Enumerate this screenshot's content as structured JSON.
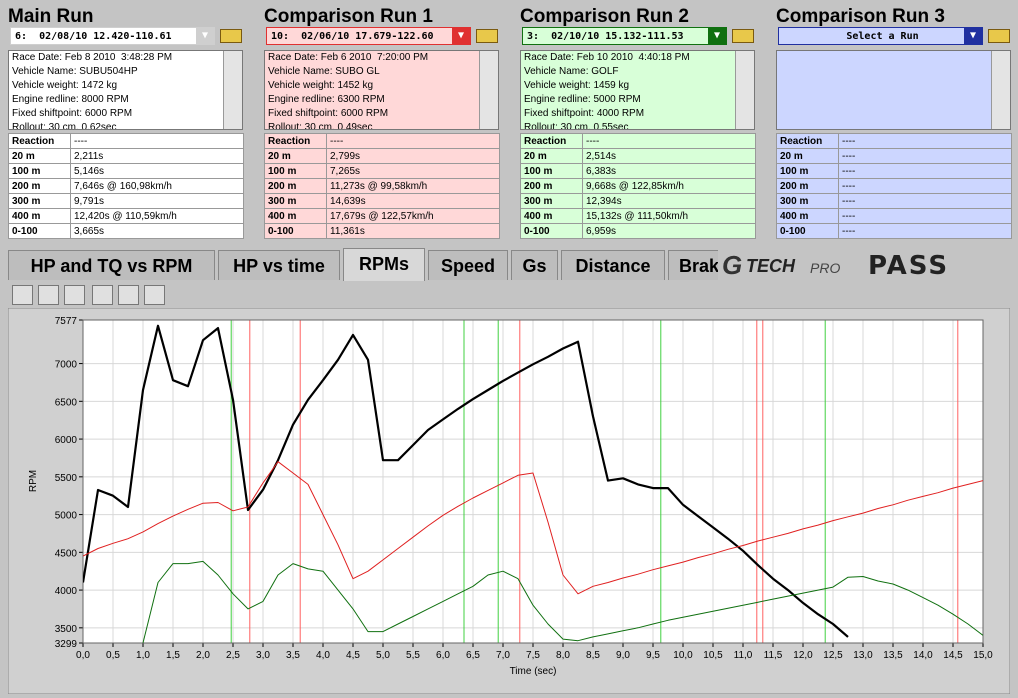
{
  "panels": [
    {
      "title": "Main Run",
      "selection": "6:  02/08/10 12.420-110.61",
      "color": "#ffffff",
      "button": "#cfcfcf",
      "info": [
        "Race Date: Feb 8 2010  3:48:28 PM",
        "Vehicle Name: SUBU504HP",
        "Vehicle weight: 1472 kg",
        "Engine redline: 8000 RPM",
        "Fixed shiftpoint: 6000 RPM",
        "Rollout: 30 cm, 0.62sec"
      ],
      "rows": [
        [
          "Reaction",
          "----"
        ],
        [
          "20 m",
          "2,211s"
        ],
        [
          "100 m",
          "5,146s"
        ],
        [
          "200 m",
          "7,646s @ 160,98km/h"
        ],
        [
          "300 m",
          "9,791s"
        ],
        [
          "400 m",
          "12,420s @ 110,59km/h"
        ],
        [
          "0-100",
          "3,665s"
        ]
      ]
    },
    {
      "title": "Comparison Run 1",
      "selection": "10:  02/06/10 17.679-122.60",
      "color": "#ffd8d8",
      "button": "#e03030",
      "info": [
        "Race Date: Feb 6 2010  7:20:00 PM",
        "Vehicle Name: SUBO GL",
        "Vehicle weight: 1452 kg",
        "Engine redline: 6300 RPM",
        "Fixed shiftpoint: 6000 RPM",
        "Rollout: 30 cm, 0.49sec"
      ],
      "rows": [
        [
          "Reaction",
          "----"
        ],
        [
          "20 m",
          "2,799s"
        ],
        [
          "100 m",
          "7,265s"
        ],
        [
          "200 m",
          "11,273s @ 99,58km/h"
        ],
        [
          "300 m",
          "14,639s"
        ],
        [
          "400 m",
          "17,679s @ 122,57km/h"
        ],
        [
          "0-100",
          "11,361s"
        ]
      ]
    },
    {
      "title": "Comparison Run 2",
      "selection": "3:  02/10/10 15.132-111.53",
      "color": "#d8ffd8",
      "button": "#107010",
      "info": [
        "Race Date: Feb 10 2010  4:40:18 PM",
        "Vehicle Name: GOLF",
        "Vehicle weight: 1459 kg",
        "Engine redline: 5000 RPM",
        "Fixed shiftpoint: 4000 RPM",
        "Rollout: 30 cm, 0.55sec"
      ],
      "rows": [
        [
          "Reaction",
          "----"
        ],
        [
          "20 m",
          "2,514s"
        ],
        [
          "100 m",
          "6,383s"
        ],
        [
          "200 m",
          "9,668s @ 122,85km/h"
        ],
        [
          "300 m",
          "12,394s"
        ],
        [
          "400 m",
          "15,132s @ 111,50km/h"
        ],
        [
          "0-100",
          "6,959s"
        ]
      ]
    },
    {
      "title": "Comparison Run 3",
      "selection": "Select a Run",
      "color": "#ccd6ff",
      "button": "#2030a0",
      "info": [],
      "rows": [
        [
          "Reaction",
          "----"
        ],
        [
          "20 m",
          "----"
        ],
        [
          "100 m",
          "----"
        ],
        [
          "200 m",
          "----"
        ],
        [
          "300 m",
          "----"
        ],
        [
          "400 m",
          "----"
        ],
        [
          "0-100",
          "----"
        ]
      ]
    }
  ],
  "tabs": [
    "HP and TQ vs RPM",
    "HP vs time",
    "RPMs",
    "Speed",
    "Gs",
    "Distance",
    "Brakes"
  ],
  "logo": {
    "mark": "G",
    "brand": "TECH",
    "suffix": "PRO",
    "product": "PASS"
  },
  "chart_data": {
    "type": "line",
    "x_label": "Time (sec)",
    "y_label": "RPM",
    "grid": true,
    "xlim": [
      0,
      15
    ],
    "ylim": [
      3299,
      7577
    ],
    "yticks": [
      3299,
      3500,
      4000,
      4500,
      5000,
      5500,
      6000,
      6500,
      7000,
      7577
    ],
    "xticks": [
      {
        "value": 0,
        "label": "0,0"
      },
      {
        "value": 0.5,
        "label": "0,5"
      },
      {
        "value": 1,
        "label": "1,0"
      },
      {
        "value": 1.5,
        "label": "1,5"
      },
      {
        "value": 2,
        "label": "2,0"
      },
      {
        "value": 2.5,
        "label": "2,5"
      },
      {
        "value": 3,
        "label": "3,0"
      },
      {
        "value": 3.5,
        "label": "3,5"
      },
      {
        "value": 4,
        "label": "4,0"
      },
      {
        "value": 4.5,
        "label": "4,5"
      },
      {
        "value": 5,
        "label": "5,0"
      },
      {
        "value": 5.5,
        "label": "5,5"
      },
      {
        "value": 6,
        "label": "6,0"
      },
      {
        "value": 6.5,
        "label": "6,5"
      },
      {
        "value": 7,
        "label": "7,0"
      },
      {
        "value": 7.5,
        "label": "7,5"
      },
      {
        "value": 8,
        "label": "8,0"
      },
      {
        "value": 8.5,
        "label": "8,5"
      },
      {
        "value": 9,
        "label": "9,0"
      },
      {
        "value": 9.5,
        "label": "9,5"
      },
      {
        "value": 10,
        "label": "10,0"
      },
      {
        "value": 10.5,
        "label": "10,5"
      },
      {
        "value": 11,
        "label": "11,0"
      },
      {
        "value": 11.5,
        "label": "11,5"
      },
      {
        "value": 12,
        "label": "12,0"
      },
      {
        "value": 12.5,
        "label": "12,5"
      },
      {
        "value": 13,
        "label": "13,0"
      },
      {
        "value": 13.5,
        "label": "13,5"
      },
      {
        "value": 14,
        "label": "14,0"
      },
      {
        "value": 14.5,
        "label": "14,5"
      },
      {
        "value": 15,
        "label": "15,0"
      }
    ],
    "x": [
      0,
      0.25,
      0.5,
      0.75,
      1,
      1.25,
      1.5,
      1.75,
      2,
      2.25,
      2.5,
      2.75,
      3,
      3.25,
      3.5,
      3.75,
      4,
      4.25,
      4.5,
      4.75,
      5,
      5.25,
      5.5,
      5.75,
      6,
      6.25,
      6.5,
      6.75,
      7,
      7.25,
      7.5,
      7.75,
      8,
      8.25,
      8.5,
      8.75,
      9,
      9.25,
      9.5,
      9.75,
      10,
      10.25,
      10.5,
      10.75,
      11,
      11.25,
      11.5,
      11.75,
      12,
      12.25,
      12.5,
      12.75,
      13,
      13.25,
      13.5,
      13.75,
      14,
      14.25,
      14.5,
      14.75,
      15
    ],
    "series": [
      {
        "color": "#000000",
        "width": 2.2,
        "values": [
          4100,
          5325,
          5250,
          5100,
          6650,
          7500,
          6780,
          6700,
          7310,
          7470,
          6520,
          5060,
          5330,
          5720,
          6190,
          6520,
          6780,
          7050,
          7380,
          7050,
          5720,
          5720,
          5920,
          6120,
          6260,
          6400,
          6530,
          6650,
          6770,
          6880,
          6990,
          7090,
          7200,
          7290,
          6300,
          5450,
          5480,
          5400,
          5350,
          5350,
          5130,
          4980,
          4830,
          4680,
          4520,
          4330,
          4150,
          4000,
          3830,
          3680,
          3550,
          3380,
          null,
          null,
          null,
          null,
          null,
          null,
          null,
          null,
          null
        ]
      },
      {
        "color": "#e02020",
        "width": 1,
        "values": [
          4450,
          4550,
          4620,
          4680,
          4770,
          4880,
          4980,
          5070,
          5150,
          5160,
          5050,
          5100,
          5420,
          5700,
          5550,
          5400,
          5000,
          4600,
          4150,
          4250,
          4400,
          4550,
          4700,
          4850,
          4990,
          5110,
          5220,
          5320,
          5420,
          5520,
          5550,
          4900,
          4200,
          3950,
          4050,
          4100,
          4160,
          4210,
          4270,
          4320,
          4370,
          4430,
          4480,
          4540,
          4590,
          4650,
          4700,
          4750,
          4810,
          4860,
          4920,
          4970,
          5020,
          5080,
          5130,
          5190,
          5240,
          5290,
          5350,
          5400,
          5450
        ]
      },
      {
        "color": "#107010",
        "width": 1,
        "values": [
          null,
          null,
          null,
          null,
          3300,
          4100,
          4350,
          4350,
          4380,
          4200,
          3950,
          3750,
          3850,
          4200,
          4350,
          4280,
          4250,
          4000,
          3750,
          3450,
          3450,
          3550,
          3650,
          3750,
          3850,
          3950,
          4050,
          4200,
          4250,
          4150,
          3800,
          3550,
          3350,
          3330,
          3380,
          3420,
          3460,
          3500,
          3550,
          3600,
          3640,
          3680,
          3720,
          3760,
          3800,
          3840,
          3880,
          3920,
          3960,
          4000,
          4040,
          4170,
          4180,
          4120,
          4080,
          4000,
          3900,
          3800,
          3680,
          3550,
          3400
        ]
      }
    ],
    "shift_lines": [
      {
        "x": 2.47,
        "color": "#40d040"
      },
      {
        "x": 6.35,
        "color": "#40d040"
      },
      {
        "x": 6.92,
        "color": "#40d040"
      },
      {
        "x": 9.63,
        "color": "#40d040"
      },
      {
        "x": 12.37,
        "color": "#40d040"
      },
      {
        "x": 2.78,
        "color": "#ff6060"
      },
      {
        "x": 3.62,
        "color": "#ff6060"
      },
      {
        "x": 7.28,
        "color": "#ff6060"
      },
      {
        "x": 11.23,
        "color": "#ff6060"
      },
      {
        "x": 11.33,
        "color": "#ff6060"
      },
      {
        "x": 14.58,
        "color": "#ff6060"
      }
    ]
  }
}
